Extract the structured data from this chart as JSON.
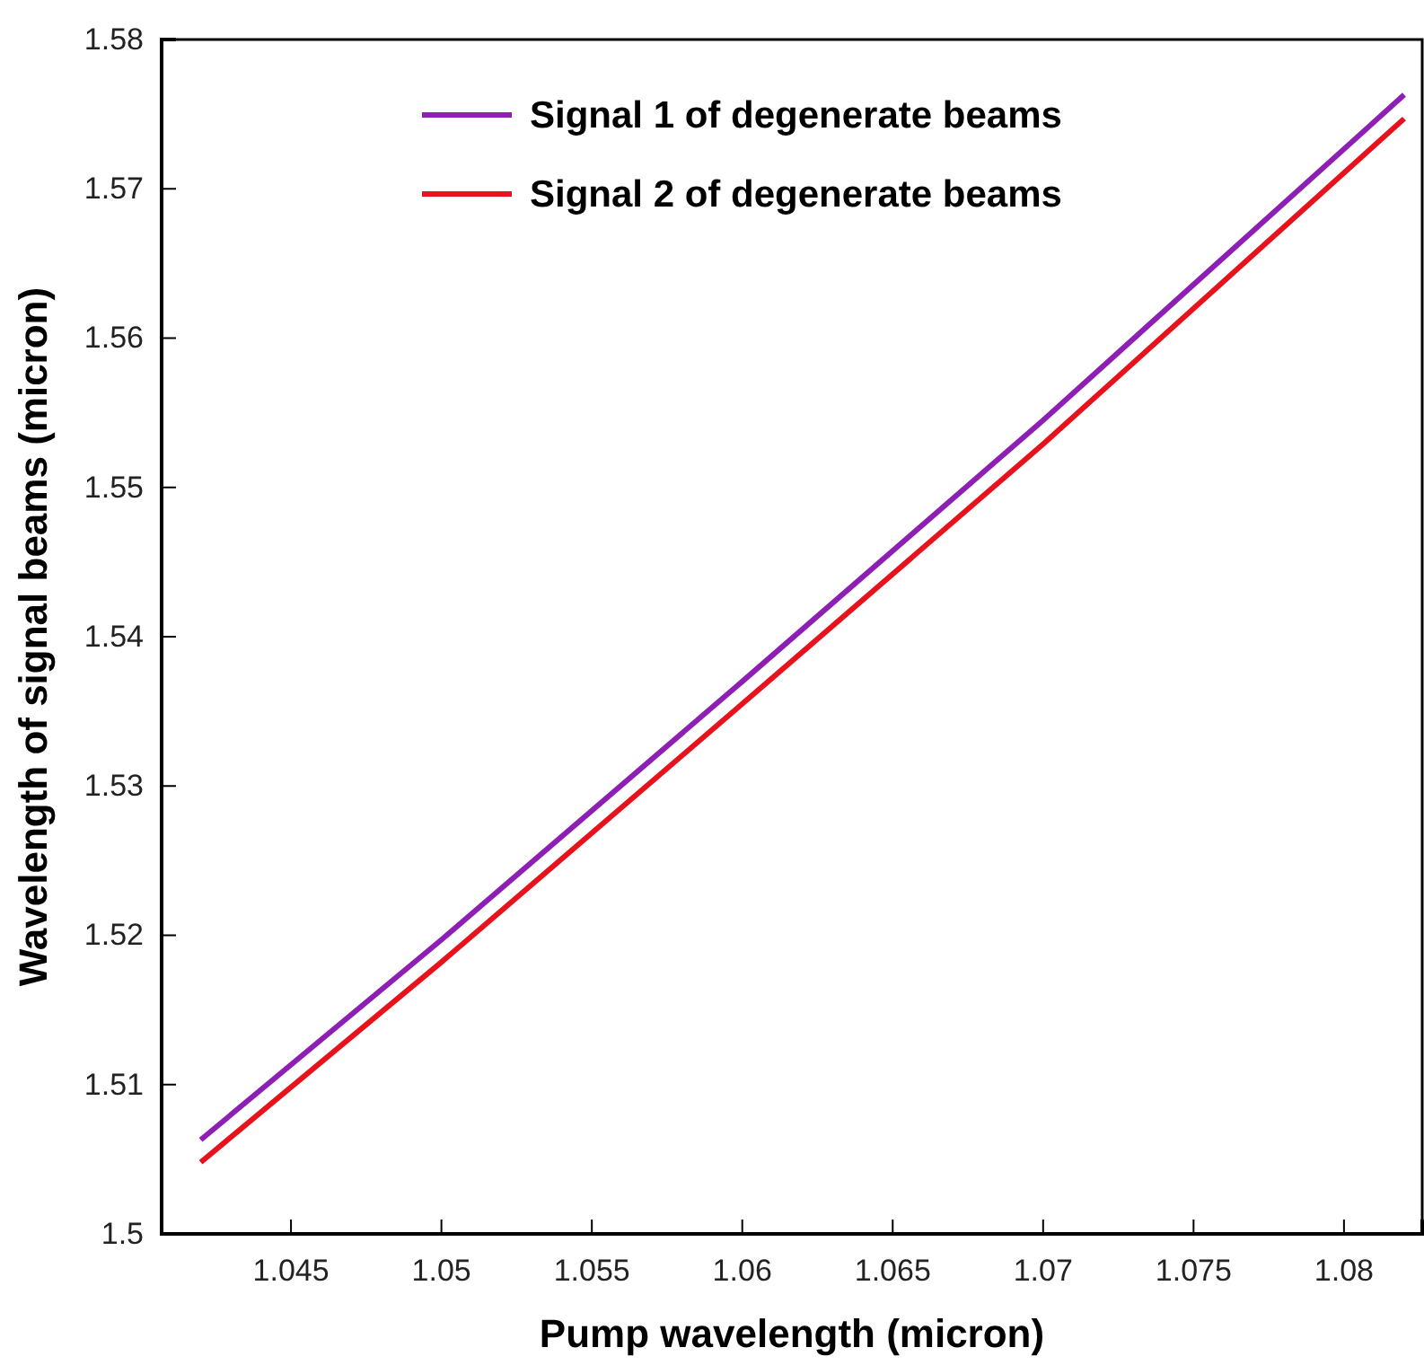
{
  "chart_data": {
    "type": "line",
    "xlabel": "Pump wavelength (micron)",
    "ylabel": "Wavelength of signal beams (micron)",
    "xlim": [
      1.0407,
      1.0826
    ],
    "xticks": [
      {
        "value": 1.045,
        "label": "1.045"
      },
      {
        "value": 1.05,
        "label": "1.05"
      },
      {
        "value": 1.055,
        "label": "1.055"
      },
      {
        "value": 1.06,
        "label": "1.06"
      },
      {
        "value": 1.065,
        "label": "1.065"
      },
      {
        "value": 1.07,
        "label": "1.07"
      },
      {
        "value": 1.075,
        "label": "1.075"
      },
      {
        "value": 1.08,
        "label": "1.08"
      }
    ],
    "ylim": [
      1.5,
      1.58
    ],
    "yticks": [
      {
        "value": 1.5,
        "label": "1.5"
      },
      {
        "value": 1.51,
        "label": "1.51"
      },
      {
        "value": 1.52,
        "label": "1.52"
      },
      {
        "value": 1.53,
        "label": "1.53"
      },
      {
        "value": 1.54,
        "label": "1.54"
      },
      {
        "value": 1.55,
        "label": "1.55"
      },
      {
        "value": 1.56,
        "label": "1.56"
      },
      {
        "value": 1.57,
        "label": "1.57"
      },
      {
        "value": 1.58,
        "label": "1.58"
      }
    ],
    "x": [
      1.042,
      1.05,
      1.06,
      1.07,
      1.082
    ],
    "series": [
      {
        "name": "Signal 1 of degenerate beams",
        "color": "#8e1fb4",
        "values": [
          1.5063,
          1.5197,
          1.537,
          1.5545,
          1.5763
        ]
      },
      {
        "name": "Signal 2 of degenerate beams",
        "color": "#e8121c",
        "values": [
          1.5048,
          1.5182,
          1.5355,
          1.5529,
          1.5747
        ]
      }
    ],
    "legend": "top left",
    "grid": false,
    "line_style": "solid",
    "marker": "none"
  }
}
